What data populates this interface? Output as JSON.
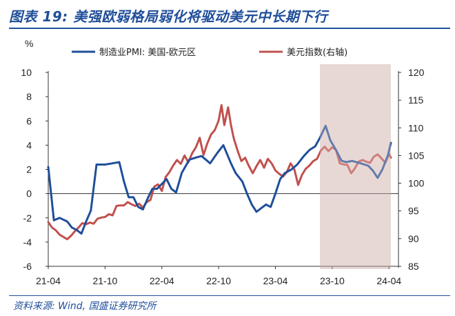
{
  "figure": {
    "title": "图表 19:  美强欧弱格局弱化将驱动美元中长期下行",
    "source": "资料来源:  Wind,  国盛证券研究所"
  },
  "colors": {
    "pmi_series": "#1f4e9a",
    "dxy_series": "#c0504d",
    "shade": "#e6d3d1",
    "title": "#1f4e9a"
  },
  "chart_data": {
    "type": "line",
    "ylabel": "%",
    "ylim": [
      -6,
      10
    ],
    "y_ticks": [
      "-6",
      "-4",
      "-2",
      "0",
      "2",
      "4",
      "6",
      "8",
      "10"
    ],
    "y2lim": [
      85,
      120
    ],
    "y2_ticks": [
      "85",
      "90",
      "95",
      "100",
      "105",
      "110",
      "115",
      "120"
    ],
    "xlim": [
      0,
      37
    ],
    "x_ticks": [
      {
        "pos": 0,
        "label": "21-04"
      },
      {
        "pos": 6,
        "label": "21-10"
      },
      {
        "pos": 12,
        "label": "22-04"
      },
      {
        "pos": 18,
        "label": "22-10"
      },
      {
        "pos": 24,
        "label": "23-04"
      },
      {
        "pos": 30,
        "label": "23-10"
      },
      {
        "pos": 36,
        "label": "24-04"
      }
    ],
    "shaded_region": {
      "x_start": 28.7,
      "x_end": 36.2
    },
    "grid": false,
    "legend_position": "top",
    "series": [
      {
        "name": "制造业PMI: 美国-欧元区",
        "axis": "left",
        "points": [
          [
            0,
            2.2
          ],
          [
            0.6,
            -2.2
          ],
          [
            1.2,
            -2.0
          ],
          [
            2,
            -2.3
          ],
          [
            2.5,
            -2.8
          ],
          [
            3,
            -3.0
          ],
          [
            3.5,
            -3.3
          ],
          [
            4,
            -2.3
          ],
          [
            4.5,
            -1.4
          ],
          [
            5.1,
            2.4
          ],
          [
            6,
            2.4
          ],
          [
            6.8,
            2.5
          ],
          [
            7.5,
            2.6
          ],
          [
            8,
            1.0
          ],
          [
            8.5,
            -0.3
          ],
          [
            9,
            -0.3
          ],
          [
            9.5,
            -1.1
          ],
          [
            10,
            -1.3
          ],
          [
            10.5,
            -0.4
          ],
          [
            11,
            0.4
          ],
          [
            11.5,
            0.4
          ],
          [
            12,
            0.8
          ],
          [
            12.5,
            1.2
          ],
          [
            13,
            0.4
          ],
          [
            13.5,
            0.1
          ],
          [
            14.1,
            1.7
          ],
          [
            14.9,
            2.8
          ],
          [
            15.7,
            3.0
          ],
          [
            16.2,
            3.1
          ],
          [
            17.1,
            2.5
          ],
          [
            17.9,
            3.4
          ],
          [
            18.5,
            4.0
          ],
          [
            19.3,
            2.5
          ],
          [
            19.8,
            1.7
          ],
          [
            20.5,
            1.0
          ],
          [
            21,
            0
          ],
          [
            21.5,
            -0.9
          ],
          [
            22,
            -1.5
          ],
          [
            22.5,
            -1.2
          ],
          [
            23,
            -0.9
          ],
          [
            23.5,
            -1.1
          ],
          [
            24,
            0
          ],
          [
            24.5,
            1.2
          ],
          [
            25,
            1.7
          ],
          [
            25.7,
            2.0
          ],
          [
            26.3,
            2.4
          ],
          [
            27,
            3.1
          ],
          [
            27.6,
            3.6
          ],
          [
            28.2,
            3.9
          ],
          [
            28.7,
            4.6
          ],
          [
            29.3,
            5.6
          ],
          [
            29.8,
            4.4
          ],
          [
            30.4,
            3.6
          ],
          [
            31,
            2.7
          ],
          [
            31.5,
            2.6
          ],
          [
            32.1,
            2.7
          ],
          [
            33,
            2.5
          ],
          [
            33.8,
            2.3
          ],
          [
            34.3,
            1.9
          ],
          [
            34.8,
            1.3
          ],
          [
            35.3,
            2.0
          ],
          [
            35.9,
            3.2
          ],
          [
            36.2,
            4.2
          ]
        ]
      },
      {
        "name": "美元指数(右轴)",
        "axis": "right",
        "points": [
          [
            0,
            93.0
          ],
          [
            0.4,
            92.0
          ],
          [
            0.8,
            91.5
          ],
          [
            1.2,
            90.7
          ],
          [
            1.6,
            90.3
          ],
          [
            2,
            89.9
          ],
          [
            2.4,
            90.5
          ],
          [
            2.8,
            91.3
          ],
          [
            3.2,
            92.0
          ],
          [
            3.6,
            92.8
          ],
          [
            4,
            92.6
          ],
          [
            4.4,
            92.9
          ],
          [
            4.8,
            92.7
          ],
          [
            5.2,
            93.6
          ],
          [
            5.6,
            93.8
          ],
          [
            6,
            93.9
          ],
          [
            6.4,
            94.4
          ],
          [
            6.8,
            94.2
          ],
          [
            7.2,
            95.9
          ],
          [
            7.6,
            96.0
          ],
          [
            8,
            96.0
          ],
          [
            8.4,
            96.6
          ],
          [
            8.8,
            96.2
          ],
          [
            9.2,
            95.9
          ],
          [
            9.6,
            96.3
          ],
          [
            10,
            95.6
          ],
          [
            10.4,
            96.6
          ],
          [
            10.8,
            97.0
          ],
          [
            11.2,
            99.4
          ],
          [
            11.6,
            99.8
          ],
          [
            12,
            98.6
          ],
          [
            12.4,
            101.1
          ],
          [
            12.8,
            102.0
          ],
          [
            13.2,
            103.2
          ],
          [
            13.6,
            104.2
          ],
          [
            14,
            103.5
          ],
          [
            14.4,
            105.0
          ],
          [
            14.8,
            103.8
          ],
          [
            15.2,
            105.4
          ],
          [
            15.6,
            106.5
          ],
          [
            16,
            108.2
          ],
          [
            16.4,
            105.1
          ],
          [
            16.8,
            107.2
          ],
          [
            17.2,
            108.8
          ],
          [
            17.6,
            109.6
          ],
          [
            18,
            111.3
          ],
          [
            18.3,
            114.1
          ],
          [
            18.6,
            110.5
          ],
          [
            19,
            113.7
          ],
          [
            19.3,
            110.5
          ],
          [
            19.6,
            108.1
          ],
          [
            20,
            105.9
          ],
          [
            20.4,
            104.0
          ],
          [
            20.8,
            104.6
          ],
          [
            21.2,
            103.1
          ],
          [
            21.6,
            101.8
          ],
          [
            22,
            103.1
          ],
          [
            22.4,
            104.2
          ],
          [
            22.8,
            102.8
          ],
          [
            23.2,
            104.4
          ],
          [
            23.6,
            103.6
          ],
          [
            24,
            102.3
          ],
          [
            24.4,
            101.7
          ],
          [
            24.8,
            101.2
          ],
          [
            25.2,
            102.0
          ],
          [
            25.6,
            103.6
          ],
          [
            26,
            102.5
          ],
          [
            26.4,
            99.7
          ],
          [
            26.8,
            101.5
          ],
          [
            27.2,
            102.6
          ],
          [
            27.6,
            103.2
          ],
          [
            28,
            104.0
          ],
          [
            28.4,
            104.4
          ],
          [
            28.8,
            105.9
          ],
          [
            29.2,
            106.6
          ],
          [
            29.6,
            105.8
          ],
          [
            30,
            106.5
          ],
          [
            30.4,
            106.0
          ],
          [
            30.8,
            103.6
          ],
          [
            31.2,
            103.4
          ],
          [
            31.6,
            103.3
          ],
          [
            32,
            101.8
          ],
          [
            32.4,
            102.7
          ],
          [
            32.8,
            103.9
          ],
          [
            33.2,
            104.2
          ],
          [
            33.6,
            103.9
          ],
          [
            34,
            103.7
          ],
          [
            34.4,
            104.8
          ],
          [
            34.8,
            105.2
          ],
          [
            35.2,
            104.5
          ],
          [
            35.6,
            103.7
          ],
          [
            36,
            105.3
          ],
          [
            36.2,
            104.6
          ]
        ]
      }
    ]
  }
}
